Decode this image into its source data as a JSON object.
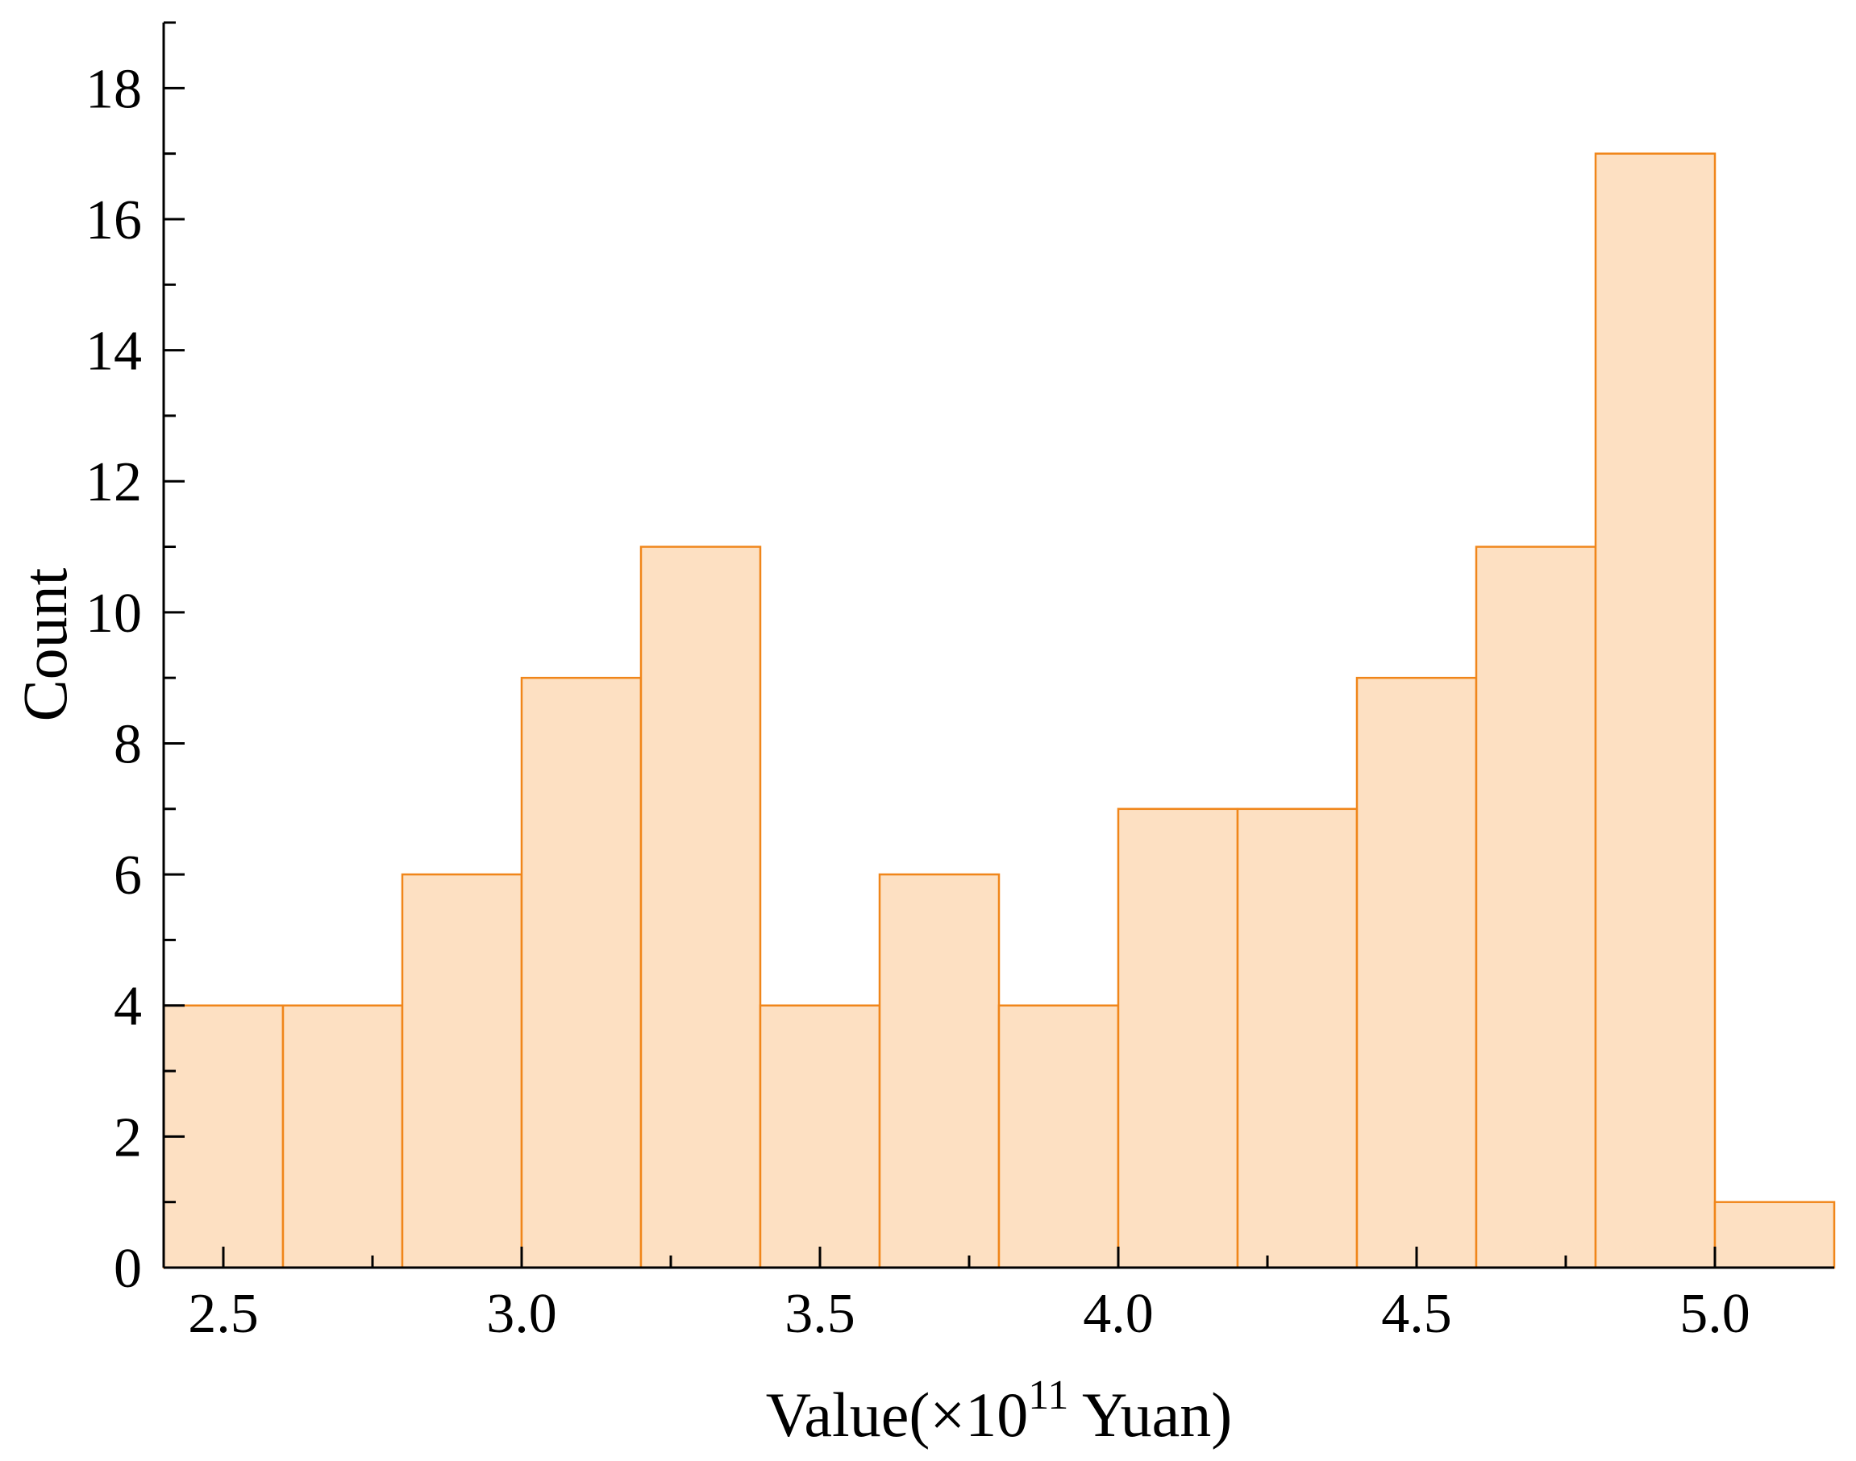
{
  "chart_data": {
    "type": "histogram",
    "title": "",
    "xlabel": "Value(×10^11 Yuan)",
    "xlabel_parts": {
      "prefix": "Value(×10",
      "superscript": "11",
      "suffix": " Yuan)"
    },
    "ylabel": "Count",
    "bins": {
      "start": 2.4,
      "width": 0.2,
      "count": 14
    },
    "bin_edges": [
      2.4,
      2.6,
      2.8,
      3.0,
      3.2,
      3.4,
      3.6,
      3.8,
      4.0,
      4.2,
      4.4,
      4.6,
      4.8,
      5.0,
      5.2
    ],
    "counts": [
      4,
      4,
      6,
      9,
      11,
      4,
      6,
      4,
      7,
      7,
      9,
      11,
      17,
      1
    ],
    "total_samples": 100,
    "x_axis": {
      "range": [
        2.4,
        5.2
      ],
      "major_ticks": [
        2.5,
        3.0,
        3.5,
        4.0,
        4.5,
        5.0
      ],
      "tick_labels": [
        "2.5",
        "3.0",
        "3.5",
        "4.0",
        "4.5",
        "5.0"
      ],
      "minor_ticks": [
        2.75,
        3.25,
        3.75,
        4.25,
        4.75
      ]
    },
    "y_axis": {
      "range": [
        0,
        19
      ],
      "major_ticks": [
        0,
        2,
        4,
        6,
        8,
        10,
        12,
        14,
        16,
        18
      ],
      "tick_labels": [
        "0",
        "2",
        "4",
        "6",
        "8",
        "10",
        "12",
        "14",
        "16",
        "18"
      ],
      "minor_ticks": [
        1,
        3,
        5,
        7,
        9,
        11,
        13,
        15,
        17,
        19
      ]
    },
    "grid": false,
    "legend": null,
    "colors": {
      "bar_fill": "#FDE0C2",
      "bar_border": "#F0861A",
      "axis": "#000000",
      "text": "#000000",
      "background": "#FFFFFF"
    }
  }
}
